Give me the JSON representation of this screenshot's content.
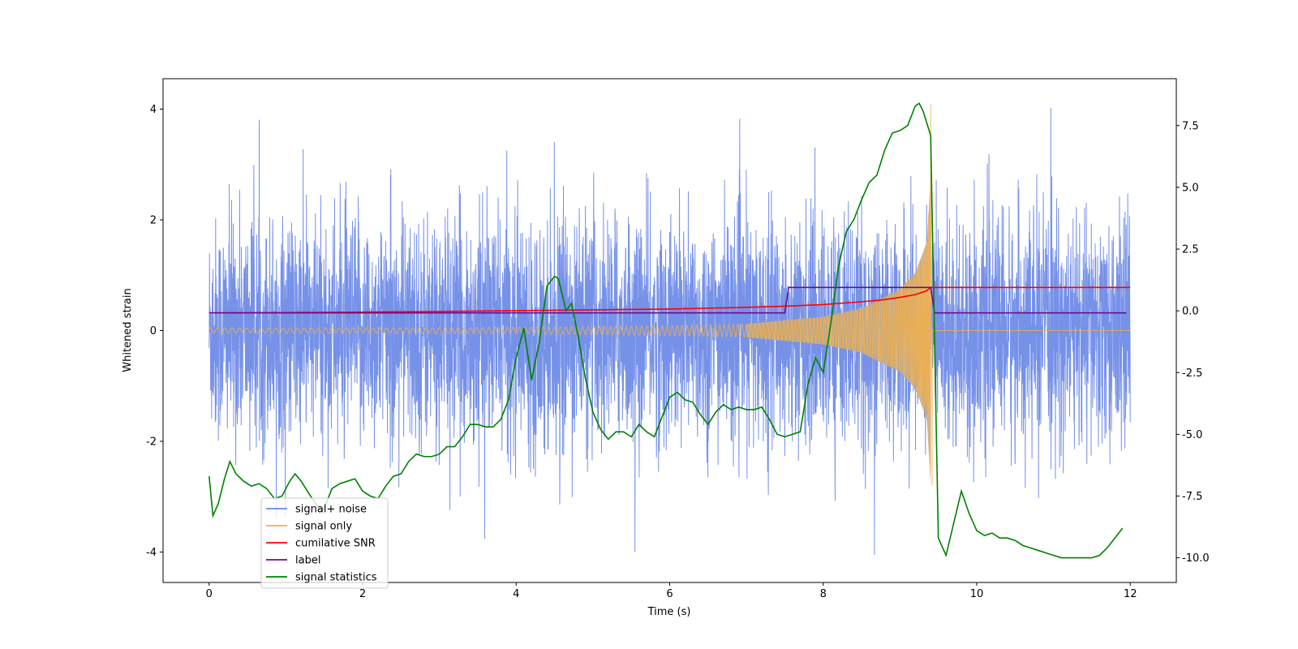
{
  "chart_data": {
    "type": "line",
    "title": "",
    "xlabel": "Time (s)",
    "ylabel": "Whitened strain",
    "y2label": "",
    "xlim": [
      -0.6,
      12.6
    ],
    "ylim": [
      -4.55,
      4.55
    ],
    "y2lim": [
      -11.0,
      9.4
    ],
    "xticks": [
      0,
      2,
      4,
      6,
      8,
      10,
      12
    ],
    "yticks": [
      -4,
      -2,
      0,
      2,
      4
    ],
    "y2ticks": [
      -10.0,
      -7.5,
      -5.0,
      -2.5,
      0.0,
      2.5,
      5.0,
      7.5
    ],
    "x_range": [
      0,
      12
    ],
    "legend": {
      "placement": "lower-left",
      "entries": [
        "signal+ noise",
        "signal only",
        "cumilative SNR",
        "label",
        "signal statistics"
      ]
    },
    "colors": {
      "noise": "#6a88e6",
      "signal": "#f4b14a",
      "snr": "#ff0000",
      "label": "#6a0d91",
      "stats": "#008000",
      "chirp_fill": "#c9a97c"
    },
    "series": [
      {
        "name": "signal+ noise",
        "axis": "left",
        "description": "whitened detector strain, noise std ~1.0, spikes up to about +4.1 / -4.1",
        "range": [
          -4.15,
          4.15
        ]
      },
      {
        "name": "signal only",
        "axis": "left",
        "envelope": {
          "t": [
            0.0,
            2.0,
            4.0,
            6.0,
            7.0,
            8.0,
            8.5,
            9.0,
            9.2,
            9.35,
            9.4
          ],
          "amp": [
            0.05,
            0.05,
            0.06,
            0.09,
            0.12,
            0.25,
            0.4,
            0.75,
            1.05,
            1.6,
            2.8
          ]
        },
        "merger_time": 9.4,
        "zero_after": 9.42
      },
      {
        "name": "cumilative SNR",
        "axis": "left",
        "t": [
          0.0,
          1.0,
          2.0,
          3.0,
          4.0,
          5.0,
          6.0,
          7.0,
          7.5,
          8.0,
          8.5,
          8.8,
          9.0,
          9.2,
          9.35,
          9.4,
          12.0
        ],
        "y": [
          0.32,
          0.325,
          0.335,
          0.345,
          0.36,
          0.375,
          0.39,
          0.42,
          0.44,
          0.47,
          0.52,
          0.56,
          0.6,
          0.65,
          0.72,
          0.78,
          0.78
        ]
      },
      {
        "name": "label",
        "axis": "left",
        "t": [
          0.0,
          7.5,
          7.55,
          9.4,
          9.45,
          11.95
        ],
        "y": [
          0.32,
          0.32,
          0.78,
          0.78,
          0.32,
          0.32
        ]
      },
      {
        "name": "signal statistics",
        "axis": "right",
        "t": [
          0.0,
          0.05,
          0.12,
          0.2,
          0.27,
          0.35,
          0.45,
          0.55,
          0.65,
          0.75,
          0.85,
          0.95,
          1.05,
          1.12,
          1.2,
          1.3,
          1.45,
          1.5,
          1.6,
          1.7,
          1.8,
          1.9,
          2.0,
          2.1,
          2.2,
          2.3,
          2.4,
          2.5,
          2.6,
          2.7,
          2.8,
          2.9,
          3.0,
          3.1,
          3.2,
          3.3,
          3.4,
          3.5,
          3.6,
          3.7,
          3.8,
          3.9,
          4.0,
          4.1,
          4.2,
          4.3,
          4.4,
          4.5,
          4.55,
          4.65,
          4.72,
          4.8,
          4.9,
          5.0,
          5.1,
          5.2,
          5.3,
          5.4,
          5.5,
          5.6,
          5.7,
          5.8,
          5.9,
          6.0,
          6.1,
          6.2,
          6.3,
          6.4,
          6.5,
          6.6,
          6.7,
          6.8,
          6.9,
          7.0,
          7.1,
          7.2,
          7.3,
          7.4,
          7.5,
          7.6,
          7.7,
          7.8,
          7.9,
          8.0,
          8.1,
          8.2,
          8.3,
          8.4,
          8.5,
          8.6,
          8.7,
          8.8,
          8.9,
          9.0,
          9.1,
          9.2,
          9.25,
          9.3,
          9.4,
          9.5,
          9.6,
          9.7,
          9.8,
          9.9,
          10.0,
          10.1,
          10.2,
          10.3,
          10.4,
          10.5,
          10.6,
          10.7,
          10.8,
          10.9,
          11.0,
          11.1,
          11.2,
          11.3,
          11.4,
          11.5,
          11.6,
          11.7,
          11.8,
          11.9
        ],
        "y": [
          -6.7,
          -8.3,
          -7.8,
          -6.8,
          -6.1,
          -6.6,
          -6.9,
          -7.1,
          -7.0,
          -7.2,
          -7.6,
          -7.5,
          -6.9,
          -6.6,
          -6.9,
          -7.4,
          -8.1,
          -8.0,
          -7.2,
          -7.0,
          -6.9,
          -6.8,
          -7.3,
          -7.5,
          -7.6,
          -7.1,
          -6.7,
          -6.6,
          -6.1,
          -5.8,
          -5.9,
          -5.9,
          -5.8,
          -5.5,
          -5.5,
          -5.1,
          -4.6,
          -4.6,
          -4.7,
          -4.7,
          -4.4,
          -3.6,
          -1.9,
          -0.7,
          -2.8,
          -1.3,
          1.0,
          1.4,
          1.3,
          0.0,
          0.3,
          -0.9,
          -2.7,
          -4.1,
          -4.8,
          -5.2,
          -4.9,
          -4.9,
          -5.1,
          -4.6,
          -4.9,
          -5.1,
          -4.3,
          -3.5,
          -3.3,
          -3.6,
          -3.7,
          -4.2,
          -4.6,
          -4.1,
          -3.8,
          -4.0,
          -3.9,
          -4.0,
          -4.0,
          -3.9,
          -4.4,
          -5.0,
          -5.1,
          -5.0,
          -4.9,
          -3.0,
          -1.9,
          -2.5,
          -0.5,
          1.8,
          3.2,
          3.7,
          4.5,
          5.2,
          5.5,
          6.5,
          7.2,
          7.3,
          7.5,
          8.3,
          8.4,
          8.1,
          7.1,
          -9.2,
          -9.9,
          -8.6,
          -7.3,
          -8.2,
          -8.9,
          -9.1,
          -9.0,
          -9.2,
          -9.2,
          -9.3,
          -9.5,
          -9.6,
          -9.7,
          -9.8,
          -9.9,
          -10.0,
          -10.0,
          -10.0,
          -10.0,
          -10.0,
          -9.9,
          -9.6,
          -9.2,
          -8.8
        ]
      }
    ]
  }
}
